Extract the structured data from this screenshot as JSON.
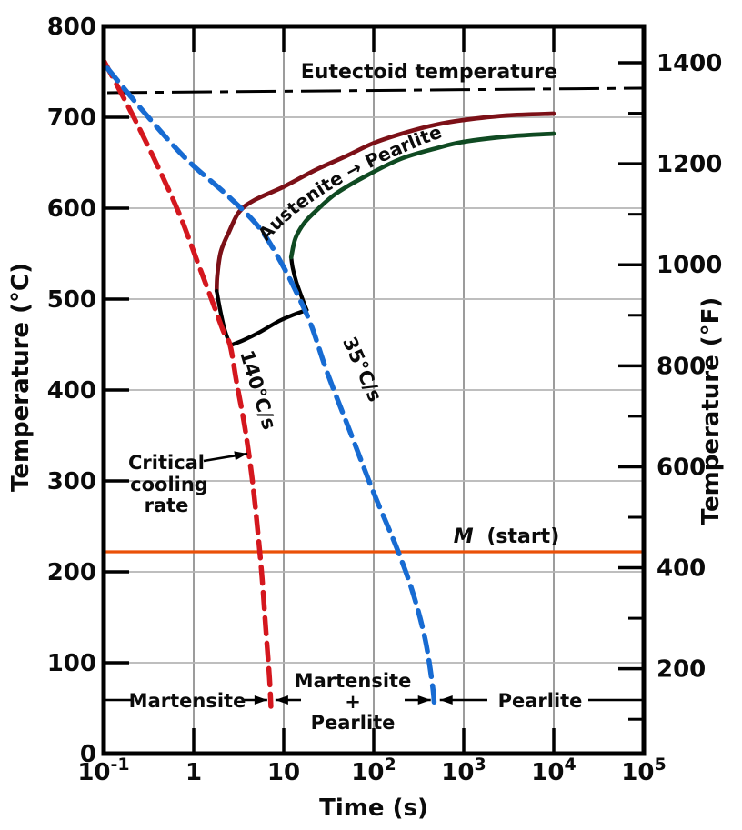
{
  "chart_data": {
    "type": "line",
    "title": "",
    "xlabel": "Time (s)",
    "ylabel_left": "Temperature (°C)",
    "ylabel_right": "Temperature (°F)",
    "x_scale": "log",
    "x_range": [
      0.1,
      100000
    ],
    "y_left_range": [
      0,
      800
    ],
    "y_left_ticks": [
      0,
      100,
      200,
      300,
      400,
      500,
      600,
      700,
      800
    ],
    "y_right_major_ticks": [
      200,
      400,
      600,
      800,
      1000,
      1200,
      1400
    ],
    "y_right_minor_ticks": [
      100,
      300,
      500,
      700,
      900,
      1100,
      1300
    ],
    "x_ticks": [
      {
        "value": 0.1,
        "mantissa": "10",
        "exponent": "-1"
      },
      {
        "value": 1,
        "mantissa": "1"
      },
      {
        "value": 10,
        "mantissa": "10"
      },
      {
        "value": 100,
        "mantissa": "10",
        "exponent": "2"
      },
      {
        "value": 1000,
        "mantissa": "10",
        "exponent": "3"
      },
      {
        "value": 10000,
        "mantissa": "10",
        "exponent": "4"
      },
      {
        "value": 100000,
        "mantissa": "10",
        "exponent": "5"
      }
    ],
    "grid": true,
    "colors": {
      "grid_vertical": "#9c9c9c",
      "grid_horizontal": "#b5b5b5",
      "axis": "#000000",
      "eutectoid_line": "#000000",
      "m_start_line": "#ea5108",
      "pearlite_start": "#7c1017",
      "pearlite_finish": "#0f4a22",
      "cooling_140": "#d4171e",
      "cooling_35": "#176bd2"
    },
    "reference_lines": {
      "eutectoid": {
        "label": "Eutectoid temperature",
        "temp_c": 727,
        "style": "dash-dot"
      },
      "martensite_start": {
        "label_italic": "M",
        "label_rest": "(start)",
        "temp_c": 220
      }
    },
    "series": [
      {
        "name": "austenite-pearlite-start",
        "color": "#7c1017",
        "style": "solid",
        "points": [
          [
            1.8,
            509
          ],
          [
            1.83,
            526
          ],
          [
            2.0,
            552
          ],
          [
            2.47,
            574
          ],
          [
            3.2,
            596
          ],
          [
            4.75,
            609
          ],
          [
            10.2,
            624
          ],
          [
            22.5,
            642
          ],
          [
            48.7,
            657
          ],
          [
            102,
            672
          ],
          [
            240,
            684
          ],
          [
            500,
            692
          ],
          [
            1000,
            697
          ],
          [
            3000,
            702
          ],
          [
            10000,
            704
          ]
        ]
      },
      {
        "name": "start-curve-end-segment",
        "color": "#000000",
        "style": "solid",
        "points": [
          [
            1.8,
            509
          ],
          [
            1.96,
            489
          ],
          [
            2.2,
            467
          ],
          [
            2.54,
            449
          ]
        ]
      },
      {
        "name": "transformation-stop-arc",
        "color": "#000000",
        "style": "solid",
        "points": [
          [
            2.54,
            449
          ],
          [
            3.6,
            455
          ],
          [
            5.5,
            464
          ],
          [
            8.9,
            476
          ],
          [
            13,
            483
          ],
          [
            18,
            488
          ]
        ]
      },
      {
        "name": "finish-curve-end-segment",
        "color": "#000000",
        "style": "solid",
        "points": [
          [
            18,
            488
          ],
          [
            16.3,
            499
          ],
          [
            13.8,
            519
          ],
          [
            12.6,
            534
          ],
          [
            12.1,
            546
          ]
        ]
      },
      {
        "name": "austenite-pearlite-finish",
        "color": "#0f4a22",
        "style": "solid",
        "points": [
          [
            12.1,
            546
          ],
          [
            13.5,
            567
          ],
          [
            17,
            584
          ],
          [
            24,
            599
          ],
          [
            38,
            616
          ],
          [
            77,
            634
          ],
          [
            197,
            654
          ],
          [
            500,
            666
          ],
          [
            1000,
            673
          ],
          [
            3200,
            679
          ],
          [
            10000,
            682
          ]
        ]
      },
      {
        "name": "cooling-curve-140",
        "label": "140°C/s",
        "color": "#d4171e",
        "style": "dashed",
        "points": [
          [
            0.102,
            761
          ],
          [
            0.206,
            704
          ],
          [
            0.386,
            649
          ],
          [
            0.69,
            594
          ],
          [
            1.12,
            539
          ],
          [
            1.59,
            499
          ],
          [
            2.15,
            464
          ],
          [
            2.54,
            449
          ],
          [
            2.99,
            409
          ],
          [
            3.7,
            359
          ],
          [
            4.44,
            304
          ],
          [
            5.1,
            249
          ],
          [
            5.74,
            194
          ],
          [
            6.3,
            139
          ],
          [
            6.94,
            84
          ],
          [
            7.2,
            52
          ]
        ]
      },
      {
        "name": "cooling-curve-35",
        "label": "35°C/s",
        "color": "#176bd2",
        "style": "dashed",
        "points": [
          [
            0.11,
            754
          ],
          [
            0.29,
            704
          ],
          [
            0.83,
            654
          ],
          [
            2.37,
            614
          ],
          [
            5.3,
            579
          ],
          [
            9.5,
            539
          ],
          [
            15.2,
            499
          ],
          [
            20.6,
            469
          ],
          [
            30.5,
            419
          ],
          [
            54.7,
            354
          ],
          [
            98,
            289
          ],
          [
            184,
            224
          ],
          [
            278,
            174
          ],
          [
            376,
            124
          ],
          [
            451,
            74
          ],
          [
            472,
            52
          ]
        ]
      }
    ],
    "annotations": {
      "austenite_pearlite": "Austenite → Pearlite",
      "critical_cooling": [
        "Critical",
        "cooling",
        "rate"
      ],
      "region_line_temp_c": 59,
      "region_boundaries_s": [
        7.2,
        472
      ],
      "regions": [
        {
          "lines": [
            "Martensite"
          ]
        },
        {
          "lines": [
            "Martensite",
            "+",
            "Pearlite"
          ]
        },
        {
          "lines": [
            "Pearlite"
          ]
        }
      ]
    }
  }
}
